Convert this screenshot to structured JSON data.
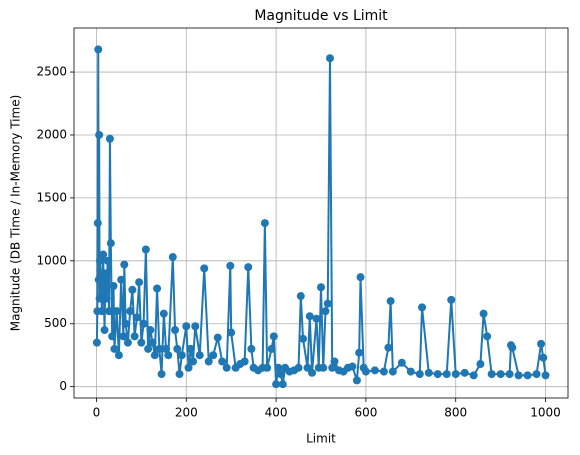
{
  "chart_data": {
    "type": "line",
    "title": "Magnitude vs Limit",
    "x_label": "Limit",
    "y_label": "Magnitude (DB Time / In-Memory Time)",
    "x": [
      1,
      2,
      3,
      4,
      5,
      6,
      7,
      8,
      10,
      12,
      15,
      18,
      20,
      22,
      25,
      28,
      30,
      32,
      35,
      38,
      40,
      45,
      50,
      55,
      60,
      62,
      65,
      70,
      75,
      80,
      85,
      90,
      95,
      100,
      105,
      110,
      115,
      120,
      125,
      130,
      135,
      140,
      145,
      150,
      155,
      160,
      170,
      175,
      180,
      185,
      190,
      200,
      205,
      210,
      215,
      220,
      230,
      240,
      250,
      260,
      270,
      280,
      290,
      298,
      300,
      310,
      320,
      330,
      338,
      345,
      350,
      360,
      370,
      375,
      380,
      390,
      395,
      400,
      405,
      410,
      415,
      420,
      430,
      440,
      450,
      455,
      460,
      470,
      475,
      480,
      490,
      495,
      500,
      505,
      510,
      515,
      520,
      525,
      530,
      540,
      550,
      560,
      570,
      580,
      585,
      588,
      595,
      600,
      620,
      640,
      650,
      655,
      660,
      680,
      700,
      720,
      725,
      740,
      760,
      780,
      790,
      800,
      820,
      840,
      855,
      862,
      870,
      880,
      900,
      920,
      923,
      926,
      940,
      960,
      980,
      990,
      995,
      1000
    ],
    "values": [
      350,
      600,
      1300,
      2680,
      850,
      2000,
      700,
      1000,
      900,
      600,
      1050,
      450,
      900,
      700,
      1000,
      600,
      1970,
      1140,
      400,
      800,
      300,
      600,
      250,
      850,
      400,
      970,
      500,
      350,
      600,
      770,
      400,
      550,
      830,
      350,
      500,
      1090,
      300,
      450,
      350,
      250,
      780,
      300,
      100,
      580,
      300,
      250,
      1030,
      450,
      300,
      100,
      250,
      480,
      150,
      300,
      200,
      480,
      250,
      940,
      200,
      250,
      390,
      200,
      150,
      960,
      430,
      150,
      180,
      200,
      950,
      300,
      150,
      130,
      150,
      1300,
      150,
      300,
      400,
      20,
      150,
      100,
      20,
      150,
      120,
      130,
      150,
      720,
      380,
      150,
      560,
      110,
      540,
      150,
      790,
      150,
      600,
      660,
      2610,
      150,
      200,
      130,
      120,
      150,
      160,
      50,
      270,
      870,
      150,
      120,
      130,
      120,
      310,
      680,
      120,
      190,
      120,
      100,
      630,
      110,
      100,
      100,
      690,
      100,
      110,
      90,
      180,
      580,
      400,
      100,
      100,
      100,
      330,
      310,
      90,
      90,
      100,
      340,
      230,
      90
    ],
    "color": "#1f77b4",
    "xlim": [
      -50,
      1050
    ],
    "xticks": [
      0,
      200,
      400,
      600,
      800,
      1000
    ],
    "ylim": [
      -90,
      2850
    ],
    "yticks": [
      0,
      500,
      1000,
      1500,
      2000,
      2500
    ],
    "grid": true
  }
}
